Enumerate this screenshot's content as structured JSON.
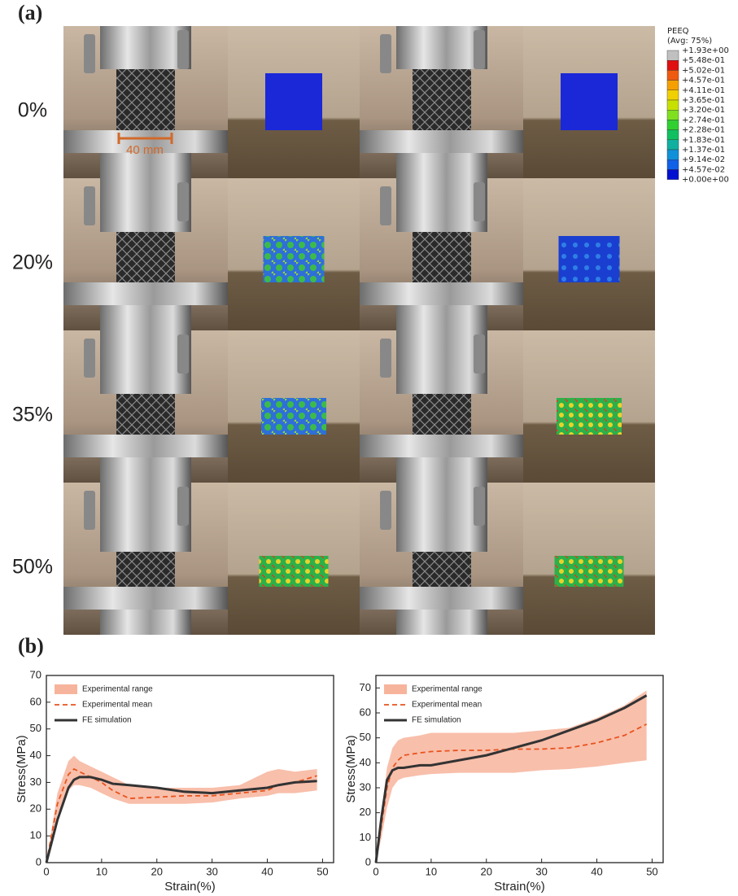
{
  "panel_a": {
    "label": "(a)",
    "strains": [
      "0%",
      "20%",
      "35%",
      "50%"
    ],
    "scale_bar": "40 mm",
    "legend": {
      "title": "PEEQ",
      "subtitle": "(Avg: 75%)",
      "labels": [
        "+1.93e+00",
        "+5.48e-01",
        "+5.02e-01",
        "+4.57e-01",
        "+4.11e-01",
        "+3.65e-01",
        "+3.20e-01",
        "+2.74e-01",
        "+2.28e-01",
        "+1.83e-01",
        "+1.37e-01",
        "+9.14e-02",
        "+4.57e-02",
        "+0.00e+00"
      ],
      "colors": [
        "#c0c0c0",
        "#e01010",
        "#f05a10",
        "#f5a000",
        "#f0d000",
        "#c8e000",
        "#80e020",
        "#30d030",
        "#10c060",
        "#10b0a0",
        "#1090d8",
        "#1060e8",
        "#0010d0"
      ]
    }
  },
  "panel_b": {
    "label": "(b)"
  },
  "chart_data": [
    {
      "type": "line",
      "x_label": "Strain(%)",
      "y_label": "Stress(MPa)",
      "x": [
        0,
        2,
        4,
        5,
        6,
        8,
        10,
        12,
        15,
        20,
        25,
        30,
        35,
        40,
        42,
        45,
        49
      ],
      "xlim": [
        0,
        52
      ],
      "ylim": [
        0,
        70
      ],
      "xticks": [
        0,
        10,
        20,
        30,
        40,
        50
      ],
      "yticks": [
        0,
        10,
        20,
        30,
        40,
        50,
        60,
        70
      ],
      "band": {
        "name": "Experimental range",
        "color": "#f7b49c",
        "lower": [
          0,
          18,
          27,
          29,
          29,
          28,
          26,
          24,
          22,
          22,
          22,
          22.5,
          24,
          25,
          26,
          26,
          27
        ],
        "upper": [
          0,
          26,
          38,
          40,
          38,
          36,
          34,
          32,
          29,
          28,
          28,
          28,
          29,
          34,
          35,
          34,
          35
        ]
      },
      "series": [
        {
          "name": "Experimental mean",
          "color": "#e8541e",
          "dashed": true,
          "values": [
            0,
            22,
            33,
            35,
            34,
            32,
            30,
            27,
            24,
            24.5,
            25,
            25,
            26,
            27,
            29,
            30,
            32.5
          ]
        },
        {
          "name": "FE simulation",
          "color": "#333333",
          "dashed": false,
          "values": [
            0,
            16,
            28,
            31,
            32,
            32,
            31,
            29.5,
            29,
            28,
            26.5,
            26,
            27,
            28,
            29,
            30,
            30.5
          ]
        }
      ]
    },
    {
      "type": "line",
      "x_label": "Strain(%)",
      "y_label": "Stress(MPa)",
      "x": [
        0,
        1,
        2,
        3,
        4,
        5,
        8,
        10,
        15,
        20,
        25,
        30,
        35,
        40,
        45,
        49
      ],
      "xlim": [
        0,
        52
      ],
      "ylim": [
        0,
        75
      ],
      "xticks": [
        0,
        10,
        20,
        30,
        40,
        50
      ],
      "yticks": [
        0,
        10,
        20,
        30,
        40,
        50,
        60,
        70
      ],
      "band": {
        "name": "Experimental range",
        "color": "#f7b49c",
        "lower": [
          0,
          10,
          22,
          30,
          33,
          34,
          35,
          35.5,
          36,
          36,
          36,
          37,
          37.5,
          38.5,
          40,
          41
        ],
        "upper": [
          0,
          20,
          38,
          46,
          49,
          50,
          51,
          52,
          52,
          52,
          52,
          53,
          54,
          58,
          63,
          69
        ]
      },
      "series": [
        {
          "name": "Experimental mean",
          "color": "#e8541e",
          "dashed": true,
          "values": [
            0,
            15,
            30,
            38,
            41,
            43,
            44,
            44.5,
            45,
            45,
            45.5,
            45.5,
            46,
            48,
            51,
            55.5
          ]
        },
        {
          "name": "FE simulation",
          "color": "#333333",
          "dashed": false,
          "values": [
            0,
            18,
            33,
            37,
            38,
            38,
            39,
            39,
            41,
            43,
            46,
            49,
            53,
            57,
            62,
            67
          ]
        }
      ]
    }
  ]
}
